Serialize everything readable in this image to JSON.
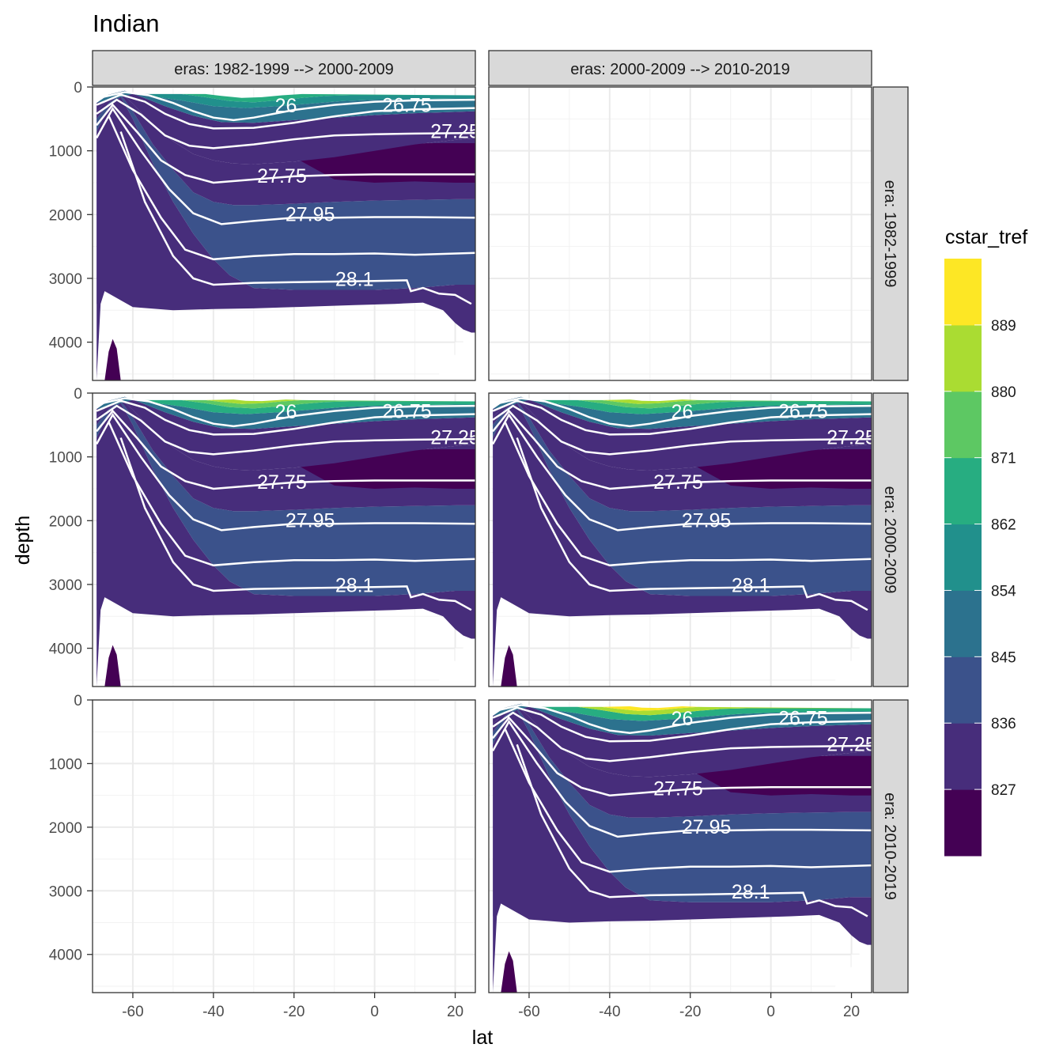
{
  "chart_data": {
    "type": "heatmap",
    "title": "Indian",
    "xlabel": "lat",
    "ylabel": "depth",
    "xlim": [
      -70,
      25
    ],
    "ylim": [
      4600,
      0
    ],
    "x_ticks": [
      -60,
      -40,
      -20,
      0,
      20
    ],
    "y_ticks": [
      0,
      1000,
      2000,
      3000,
      4000
    ],
    "grid": true,
    "y_reversed": true,
    "facets": {
      "columns": [
        "eras: 1982-1999 --> 2000-2009",
        "eras: 2000-2009 --> 2010-2019"
      ],
      "rows": [
        "era: 1982-1999",
        "era: 2000-2009",
        "era: 2010-2019"
      ],
      "panels": [
        {
          "row": 0,
          "col": 0,
          "has_data": true,
          "high_band_level": 2
        },
        {
          "row": 0,
          "col": 1,
          "has_data": false
        },
        {
          "row": 1,
          "col": 0,
          "has_data": true,
          "high_band_level": 3
        },
        {
          "row": 1,
          "col": 1,
          "has_data": true,
          "high_band_level": 3
        },
        {
          "row": 2,
          "col": 0,
          "has_data": false
        },
        {
          "row": 2,
          "col": 1,
          "has_data": true,
          "high_band_level": 4
        }
      ]
    },
    "legend": {
      "title": "cstar_tref",
      "position": "right",
      "breaks": [
        827,
        836,
        845,
        854,
        862,
        871,
        880,
        889
      ],
      "colors": [
        "#440154",
        "#472D7B",
        "#3B528B",
        "#2C728E",
        "#21908C",
        "#27AD81",
        "#5DC863",
        "#AADC32",
        "#FDE725"
      ]
    },
    "contour_lines": [
      {
        "level": "26",
        "color": "#ffffff"
      },
      {
        "level": "26.75",
        "color": "#ffffff"
      },
      {
        "level": "27.25",
        "color": "#ffffff"
      },
      {
        "level": "27.75",
        "color": "#ffffff"
      },
      {
        "level": "27.95",
        "color": "#ffffff"
      },
      {
        "level": "28.1",
        "color": "#ffffff"
      }
    ]
  }
}
